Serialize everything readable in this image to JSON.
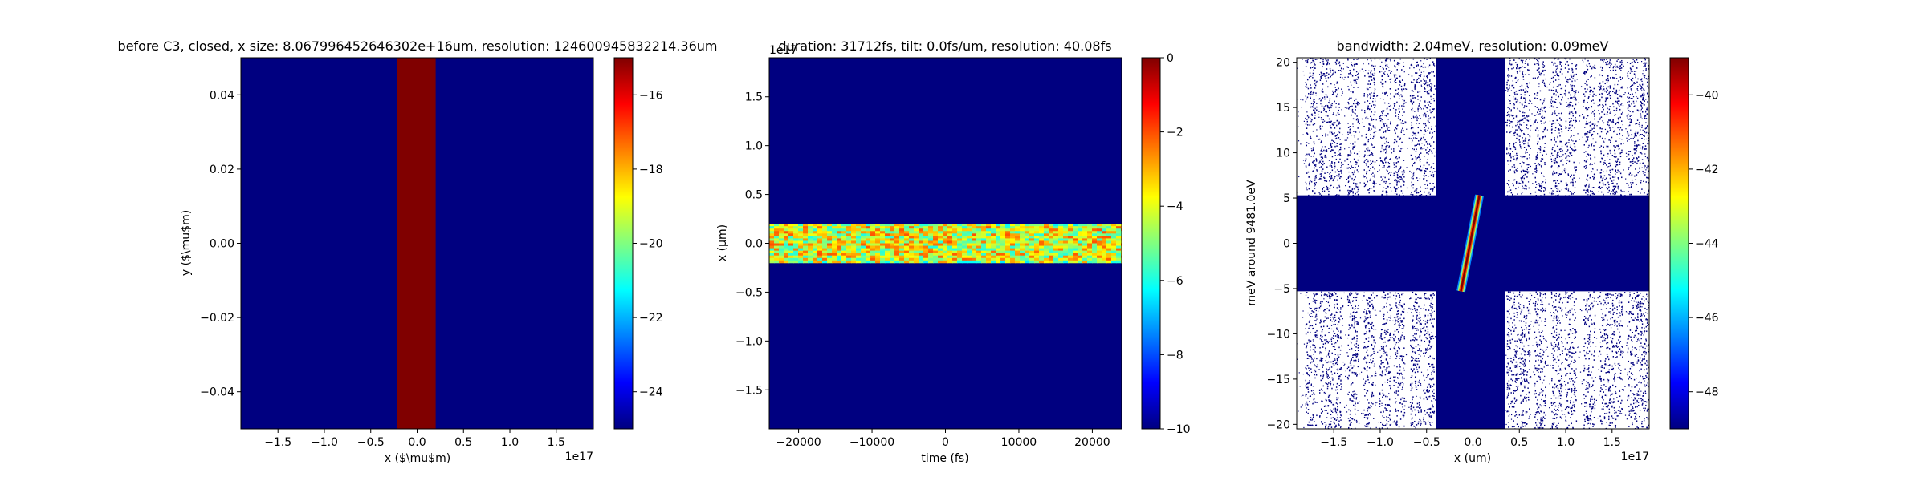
{
  "colormap": {
    "name": "jet",
    "stops": [
      "#000080",
      "#0000ff",
      "#0080ff",
      "#00ffff",
      "#80ff80",
      "#ffff00",
      "#ff8000",
      "#ff0000",
      "#800000"
    ]
  },
  "chart_data": [
    {
      "type": "heatmap",
      "title": "before C3, closed, x size: 8.067996452646302e+16um, resolution: 124600945832214.36um",
      "xlabel": "x ($\\mu$m)",
      "ylabel": "y ($\\mu$m)",
      "x_offset_text": "1e17",
      "xlim": [
        -1.9,
        1.9
      ],
      "ylim": [
        -0.05,
        0.05
      ],
      "xticks": [
        -1.5,
        -1.0,
        -0.5,
        0.0,
        0.5,
        1.0,
        1.5
      ],
      "xtick_labels": [
        "−1.5",
        "−1.0",
        "−0.5",
        "0.0",
        "0.5",
        "1.0",
        "1.5"
      ],
      "yticks": [
        0.04,
        0.02,
        0.0,
        -0.02,
        -0.04
      ],
      "ytick_labels": [
        "0.04",
        "0.02",
        "0.00",
        "−0.02",
        "−0.04"
      ],
      "background_value": -25,
      "features": [
        {
          "kind": "vertical_band",
          "x_range": [
            -0.22,
            0.2
          ],
          "value": -15
        }
      ],
      "colorbar": {
        "vmin": -25,
        "vmax": -15,
        "ticks": [
          -16,
          -18,
          -20,
          -22,
          -24
        ],
        "tick_labels": [
          "−16",
          "−18",
          "−20",
          "−22",
          "−24"
        ]
      }
    },
    {
      "type": "heatmap",
      "title": "duration: 31712fs, tilt: 0.0fs/um, resolution: 40.08fs",
      "xlabel": "time (fs)",
      "ylabel": "x (µm)",
      "y_offset_text": "1e17",
      "xlim": [
        -24000,
        24000
      ],
      "ylim": [
        -1.9,
        1.9
      ],
      "xticks": [
        -20000,
        -10000,
        0,
        10000,
        20000
      ],
      "xtick_labels": [
        "−20000",
        "−10000",
        "0",
        "10000",
        "20000"
      ],
      "yticks": [
        1.5,
        1.0,
        0.5,
        0.0,
        -0.5,
        -1.0,
        -1.5
      ],
      "ytick_labels": [
        "1.5",
        "1.0",
        "0.5",
        "0.0",
        "−0.5",
        "−1.0",
        "−1.5"
      ],
      "background_value": -10,
      "features": [
        {
          "kind": "noisy_horizontal_band",
          "y_range": [
            -0.2,
            0.2
          ],
          "value_range": [
            -6,
            -2
          ]
        }
      ],
      "colorbar": {
        "vmin": -10,
        "vmax": 0,
        "ticks": [
          0,
          -2,
          -4,
          -6,
          -8,
          -10
        ],
        "tick_labels": [
          "0",
          "−2",
          "−4",
          "−6",
          "−8",
          "−10"
        ]
      }
    },
    {
      "type": "heatmap",
      "title": "bandwidth: 2.04meV, resolution: 0.09meV",
      "xlabel": "x (um)",
      "ylabel": "meV around 9481.0eV",
      "x_offset_text": "1e17",
      "xlim": [
        -1.9,
        1.9
      ],
      "ylim": [
        -20.5,
        20.5
      ],
      "xticks": [
        -1.5,
        -1.0,
        -0.5,
        0.0,
        0.5,
        1.0,
        1.5
      ],
      "xtick_labels": [
        "−1.5",
        "−1.0",
        "−0.5",
        "0.0",
        "0.5",
        "1.0",
        "1.5"
      ],
      "yticks": [
        20,
        15,
        10,
        5,
        0,
        -5,
        -10,
        -15,
        -20
      ],
      "ytick_labels": [
        "20",
        "15",
        "10",
        "5",
        "0",
        "−5",
        "−10",
        "−15",
        "−20"
      ],
      "background_value": -49,
      "features": [
        {
          "kind": "horizontal_band",
          "y_range": [
            -5.3,
            5.3
          ],
          "value": -49
        },
        {
          "kind": "vertical_band",
          "x_range": [
            -0.4,
            0.35
          ],
          "value": -49
        },
        {
          "kind": "speckle_stripes",
          "value": -49
        },
        {
          "kind": "tilted_line",
          "x_range": [
            -0.13,
            0.07
          ],
          "y_range": [
            -5.3,
            5.3
          ],
          "value": -39
        }
      ],
      "colorbar": {
        "vmin": -49,
        "vmax": -39,
        "ticks": [
          -40,
          -42,
          -44,
          -46,
          -48
        ],
        "tick_labels": [
          "−40",
          "−42",
          "−44",
          "−46",
          "−48"
        ]
      }
    }
  ]
}
